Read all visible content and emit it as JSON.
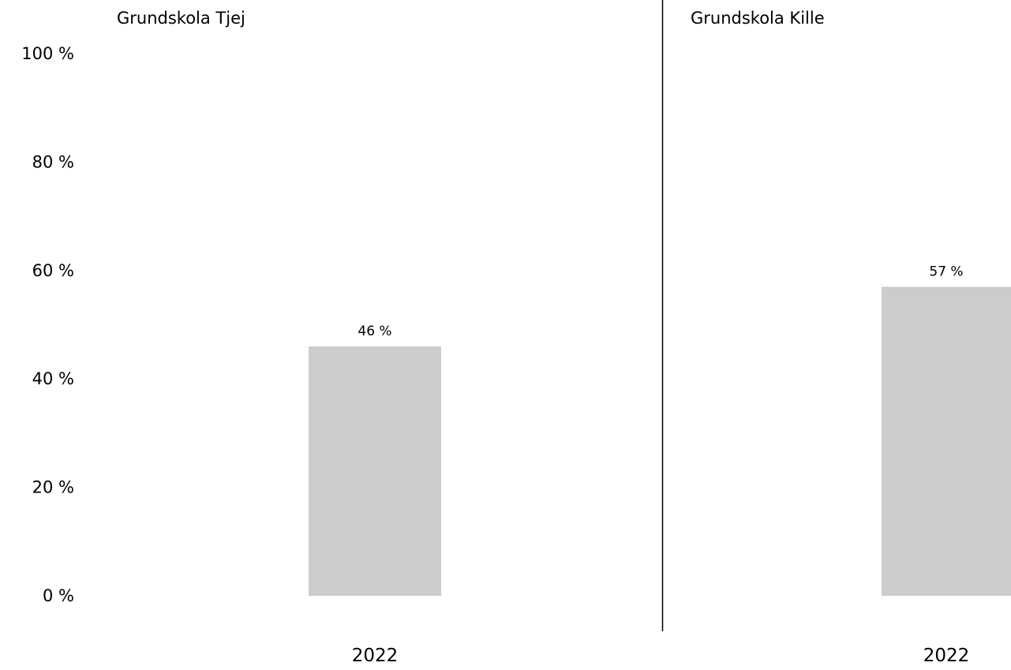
{
  "chart_data": {
    "type": "bar",
    "ylim": [
      0,
      100
    ],
    "y_ticks": [
      {
        "value": 0,
        "label": "0 %"
      },
      {
        "value": 20,
        "label": "20 %"
      },
      {
        "value": 40,
        "label": "40 %"
      },
      {
        "value": 60,
        "label": "60 %"
      },
      {
        "value": 80,
        "label": "80 %"
      },
      {
        "value": 100,
        "label": "100 %"
      }
    ],
    "grid": false,
    "legend": "none",
    "bar_color": "#cccccc",
    "divider_color": "#000000",
    "panels": [
      {
        "title": "Grundskola Tjej",
        "categories": [
          "2022"
        ],
        "values": [
          46
        ],
        "value_labels": [
          "46 %"
        ]
      },
      {
        "title": "Grundskola Kille",
        "categories": [
          "2022"
        ],
        "values": [
          57
        ],
        "value_labels": [
          "57 %"
        ]
      }
    ]
  }
}
